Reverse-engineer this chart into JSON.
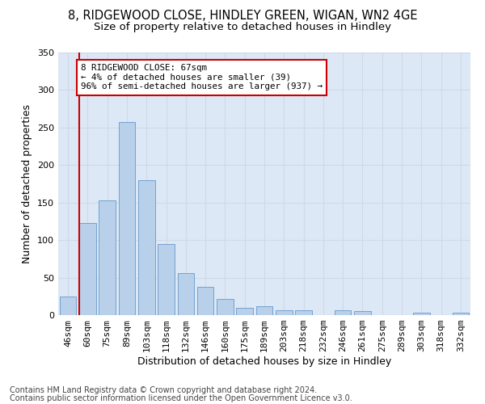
{
  "title1": "8, RIDGEWOOD CLOSE, HINDLEY GREEN, WIGAN, WN2 4GE",
  "title2": "Size of property relative to detached houses in Hindley",
  "xlabel": "Distribution of detached houses by size in Hindley",
  "ylabel": "Number of detached properties",
  "categories": [
    "46sqm",
    "60sqm",
    "75sqm",
    "89sqm",
    "103sqm",
    "118sqm",
    "132sqm",
    "146sqm",
    "160sqm",
    "175sqm",
    "189sqm",
    "203sqm",
    "218sqm",
    "232sqm",
    "246sqm",
    "261sqm",
    "275sqm",
    "289sqm",
    "303sqm",
    "318sqm",
    "332sqm"
  ],
  "values": [
    25,
    123,
    153,
    257,
    180,
    95,
    56,
    38,
    22,
    10,
    12,
    7,
    6,
    0,
    6,
    5,
    0,
    0,
    3,
    0,
    3
  ],
  "bar_color": "#b8d0ea",
  "bar_edge_color": "#6699cc",
  "annotation_text": "8 RIDGEWOOD CLOSE: 67sqm\n← 4% of detached houses are smaller (39)\n96% of semi-detached houses are larger (937) →",
  "annotation_box_color": "#ffffff",
  "annotation_box_edge_color": "#cc0000",
  "property_line_color": "#cc0000",
  "footnote1": "Contains HM Land Registry data © Crown copyright and database right 2024.",
  "footnote2": "Contains public sector information licensed under the Open Government Licence v3.0.",
  "ylim": [
    0,
    350
  ],
  "yticks": [
    0,
    50,
    100,
    150,
    200,
    250,
    300,
    350
  ],
  "grid_color": "#d0d8e8",
  "bg_color": "#dce8f5",
  "title1_fontsize": 10.5,
  "title2_fontsize": 9.5,
  "xlabel_fontsize": 9,
  "ylabel_fontsize": 9,
  "tick_fontsize": 8,
  "footnote_fontsize": 7
}
